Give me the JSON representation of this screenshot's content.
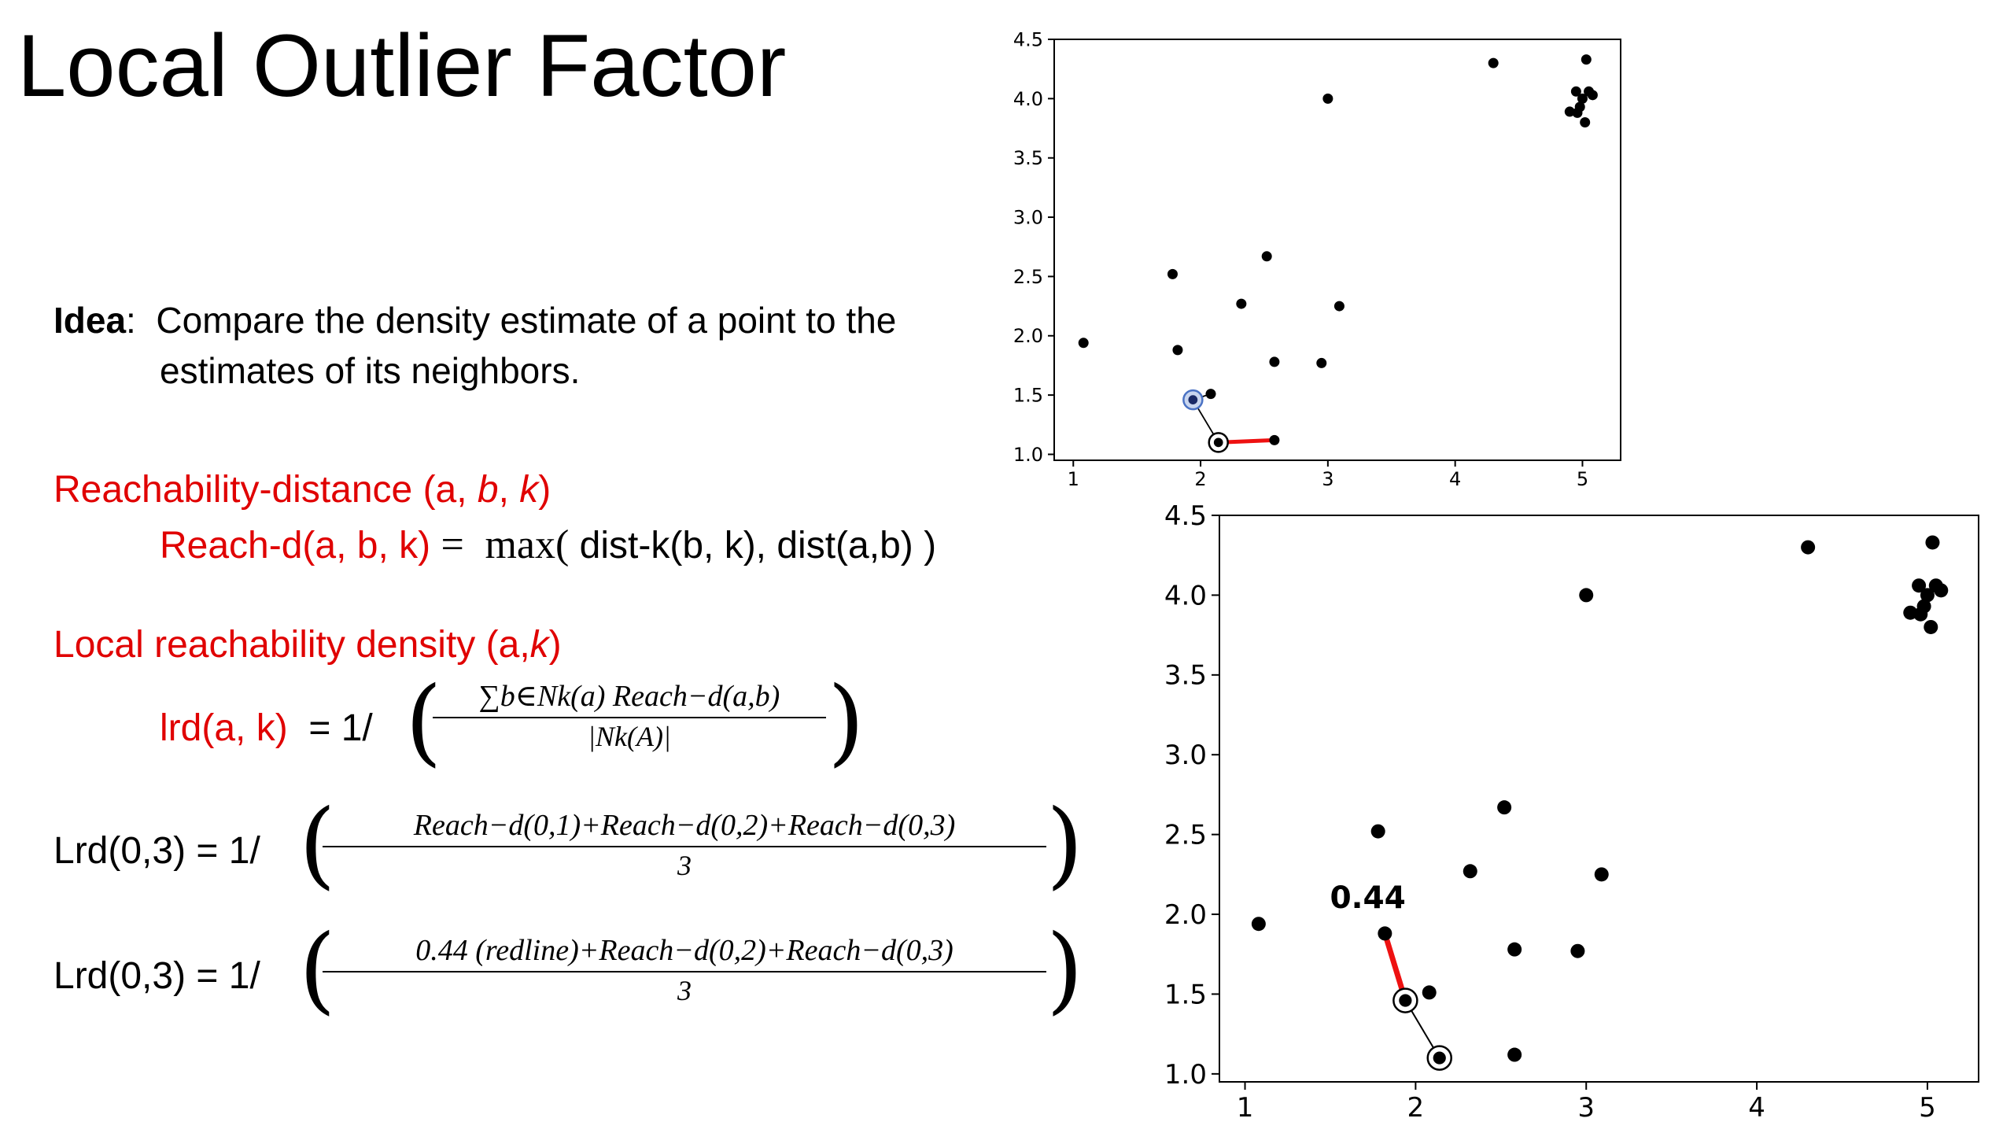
{
  "title": "Local Outlier Factor",
  "idea": {
    "label": "Idea",
    "sep": ":",
    "line1": "Compare the density estimate of a point to the",
    "line2": "estimates of its neighbors."
  },
  "reachability": {
    "heading_prefix": "Reachability-distance (a",
    "heading_b": "b",
    "heading_k": "k",
    "formula_lhs": "Reach-d(a, b, k)",
    "formula_eq": "=",
    "formula_max": "max(",
    "formula_rhs": " dist-k(b, k), dist(a,b) )"
  },
  "lrd": {
    "heading_prefix": "Local reachability density (a,",
    "heading_k": "k",
    "heading_suffix": ")",
    "lhs": "lrd(a, k)",
    "eq": "= 1/",
    "numerator": "∑b∈Nk(a) Reach−d(a,b)",
    "denominator": "|Nk(A)|"
  },
  "example1": {
    "lhs": "Lrd(0,3) = 1/",
    "numerator": "Reach−d(0,1)+Reach−d(0,2)+Reach−d(0,3)",
    "denominator": "3"
  },
  "example2": {
    "lhs": "Lrd(0,3) = 1/",
    "numerator": "0.44 (redline)+Reach−d(0,2)+Reach−d(0,3)",
    "denominator": "3"
  },
  "chart_data": [
    {
      "type": "scatter",
      "title": "",
      "xlabel": "",
      "ylabel": "",
      "xlim": [
        0.85,
        5.3
      ],
      "ylim": [
        0.95,
        4.5
      ],
      "xticks": [
        "1",
        "2",
        "3",
        "4",
        "5"
      ],
      "yticks": [
        "1.0",
        "1.5",
        "2.0",
        "2.5",
        "3.0",
        "3.5",
        "4.0",
        "4.5"
      ],
      "grid": false,
      "point_color": "#000000",
      "points": [
        [
          1.08,
          1.94
        ],
        [
          1.78,
          2.52
        ],
        [
          1.82,
          1.88
        ],
        [
          2.08,
          1.51
        ],
        [
          2.32,
          2.27
        ],
        [
          2.52,
          2.67
        ],
        [
          2.58,
          1.78
        ],
        [
          2.58,
          1.12
        ],
        [
          2.95,
          1.77
        ],
        [
          3.0,
          4.0
        ],
        [
          3.09,
          2.25
        ],
        [
          4.3,
          4.3
        ],
        [
          5.03,
          4.33
        ],
        [
          4.9,
          3.89
        ],
        [
          4.95,
          4.06
        ],
        [
          4.98,
          3.93
        ],
        [
          5.0,
          4.0
        ],
        [
          5.02,
          3.8
        ],
        [
          5.05,
          4.06
        ],
        [
          5.08,
          4.03
        ],
        [
          4.96,
          3.88
        ]
      ],
      "circled_points": [
        [
          1.94,
          1.46
        ],
        [
          2.14,
          1.1
        ]
      ],
      "highlight_color": "#4a72c4",
      "red_segment": [
        [
          2.14,
          1.1
        ],
        [
          2.58,
          1.12
        ]
      ],
      "black_segments": [
        [
          [
            1.94,
            1.46
          ],
          [
            2.14,
            1.1
          ]
        ],
        [
          [
            1.94,
            1.46
          ],
          [
            2.08,
            1.51
          ]
        ]
      ]
    },
    {
      "type": "scatter",
      "title": "",
      "xlabel": "",
      "ylabel": "",
      "xlim": [
        0.85,
        5.3
      ],
      "ylim": [
        0.95,
        4.5
      ],
      "xticks": [
        "1",
        "2",
        "3",
        "4",
        "5"
      ],
      "yticks": [
        "1.0",
        "1.5",
        "2.0",
        "2.5",
        "3.0",
        "3.5",
        "4.0",
        "4.5"
      ],
      "grid": false,
      "point_color": "#000000",
      "points": [
        [
          1.08,
          1.94
        ],
        [
          1.78,
          2.52
        ],
        [
          1.82,
          1.88
        ],
        [
          2.08,
          1.51
        ],
        [
          2.32,
          2.27
        ],
        [
          2.52,
          2.67
        ],
        [
          2.58,
          1.78
        ],
        [
          2.58,
          1.12
        ],
        [
          2.95,
          1.77
        ],
        [
          3.0,
          4.0
        ],
        [
          3.09,
          2.25
        ],
        [
          4.3,
          4.3
        ],
        [
          5.03,
          4.33
        ],
        [
          4.9,
          3.89
        ],
        [
          4.95,
          4.06
        ],
        [
          4.98,
          3.93
        ],
        [
          5.0,
          4.0
        ],
        [
          5.02,
          3.8
        ],
        [
          5.05,
          4.06
        ],
        [
          5.08,
          4.03
        ],
        [
          4.96,
          3.88
        ]
      ],
      "circled_points": [
        [
          1.94,
          1.46
        ],
        [
          2.14,
          1.1
        ]
      ],
      "red_segment": [
        [
          1.94,
          1.46
        ],
        [
          1.82,
          1.88
        ]
      ],
      "black_segments": [
        [
          [
            1.94,
            1.46
          ],
          [
            2.14,
            1.1
          ]
        ]
      ],
      "annotation": {
        "text": "0.44",
        "at": [
          1.72,
          2.04
        ]
      }
    }
  ]
}
